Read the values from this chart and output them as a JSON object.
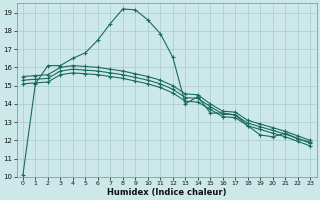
{
  "background_color": "#cce8e8",
  "grid_color": "#aacccc",
  "line_color": "#1a6b5a",
  "xlabel": "Humidex (Indice chaleur)",
  "xlim": [
    -0.5,
    23.5
  ],
  "ylim": [
    10,
    19.5
  ],
  "yticks": [
    10,
    11,
    12,
    13,
    14,
    15,
    16,
    17,
    18,
    19
  ],
  "xticks": [
    0,
    1,
    2,
    3,
    4,
    5,
    6,
    7,
    8,
    9,
    10,
    11,
    12,
    13,
    14,
    15,
    16,
    17,
    18,
    19,
    20,
    21,
    22,
    23
  ],
  "series1_x": [
    0,
    1,
    2,
    3,
    4,
    5,
    6,
    7,
    8,
    9,
    10,
    11,
    12,
    13,
    14,
    15,
    16,
    17,
    18,
    19,
    20,
    21,
    22,
    23
  ],
  "series1_y": [
    10.1,
    15.1,
    16.1,
    16.1,
    16.5,
    16.8,
    17.5,
    18.4,
    19.2,
    19.15,
    18.6,
    17.85,
    16.55,
    14.0,
    14.4,
    13.5,
    13.5,
    13.4,
    12.8,
    12.3,
    12.2,
    12.4,
    12.1,
    11.9
  ],
  "series2_x": [
    0,
    1,
    2,
    3,
    4,
    5,
    6,
    7,
    8,
    9,
    10,
    11,
    12,
    13,
    14,
    15,
    16,
    17,
    18,
    19,
    20,
    21,
    22,
    23
  ],
  "series2_y": [
    15.5,
    15.55,
    15.6,
    16.0,
    16.1,
    16.05,
    16.0,
    15.9,
    15.8,
    15.65,
    15.5,
    15.3,
    15.0,
    14.55,
    14.5,
    14.0,
    13.6,
    13.55,
    13.1,
    12.9,
    12.7,
    12.5,
    12.25,
    12.0
  ],
  "series3_x": [
    0,
    1,
    2,
    3,
    4,
    5,
    6,
    7,
    8,
    9,
    10,
    11,
    12,
    13,
    14,
    15,
    16,
    17,
    18,
    19,
    20,
    21,
    22,
    23
  ],
  "series3_y": [
    15.3,
    15.35,
    15.4,
    15.8,
    15.9,
    15.85,
    15.8,
    15.7,
    15.6,
    15.45,
    15.3,
    15.1,
    14.8,
    14.35,
    14.3,
    13.85,
    13.45,
    13.4,
    12.95,
    12.75,
    12.55,
    12.35,
    12.1,
    11.85
  ],
  "series4_x": [
    0,
    1,
    2,
    3,
    4,
    5,
    6,
    7,
    8,
    9,
    10,
    11,
    12,
    13,
    14,
    15,
    16,
    17,
    18,
    19,
    20,
    21,
    22,
    23
  ],
  "series4_y": [
    15.1,
    15.15,
    15.2,
    15.6,
    15.7,
    15.65,
    15.6,
    15.5,
    15.4,
    15.25,
    15.1,
    14.9,
    14.6,
    14.15,
    14.1,
    13.7,
    13.3,
    13.25,
    12.8,
    12.6,
    12.4,
    12.2,
    11.95,
    11.7
  ]
}
